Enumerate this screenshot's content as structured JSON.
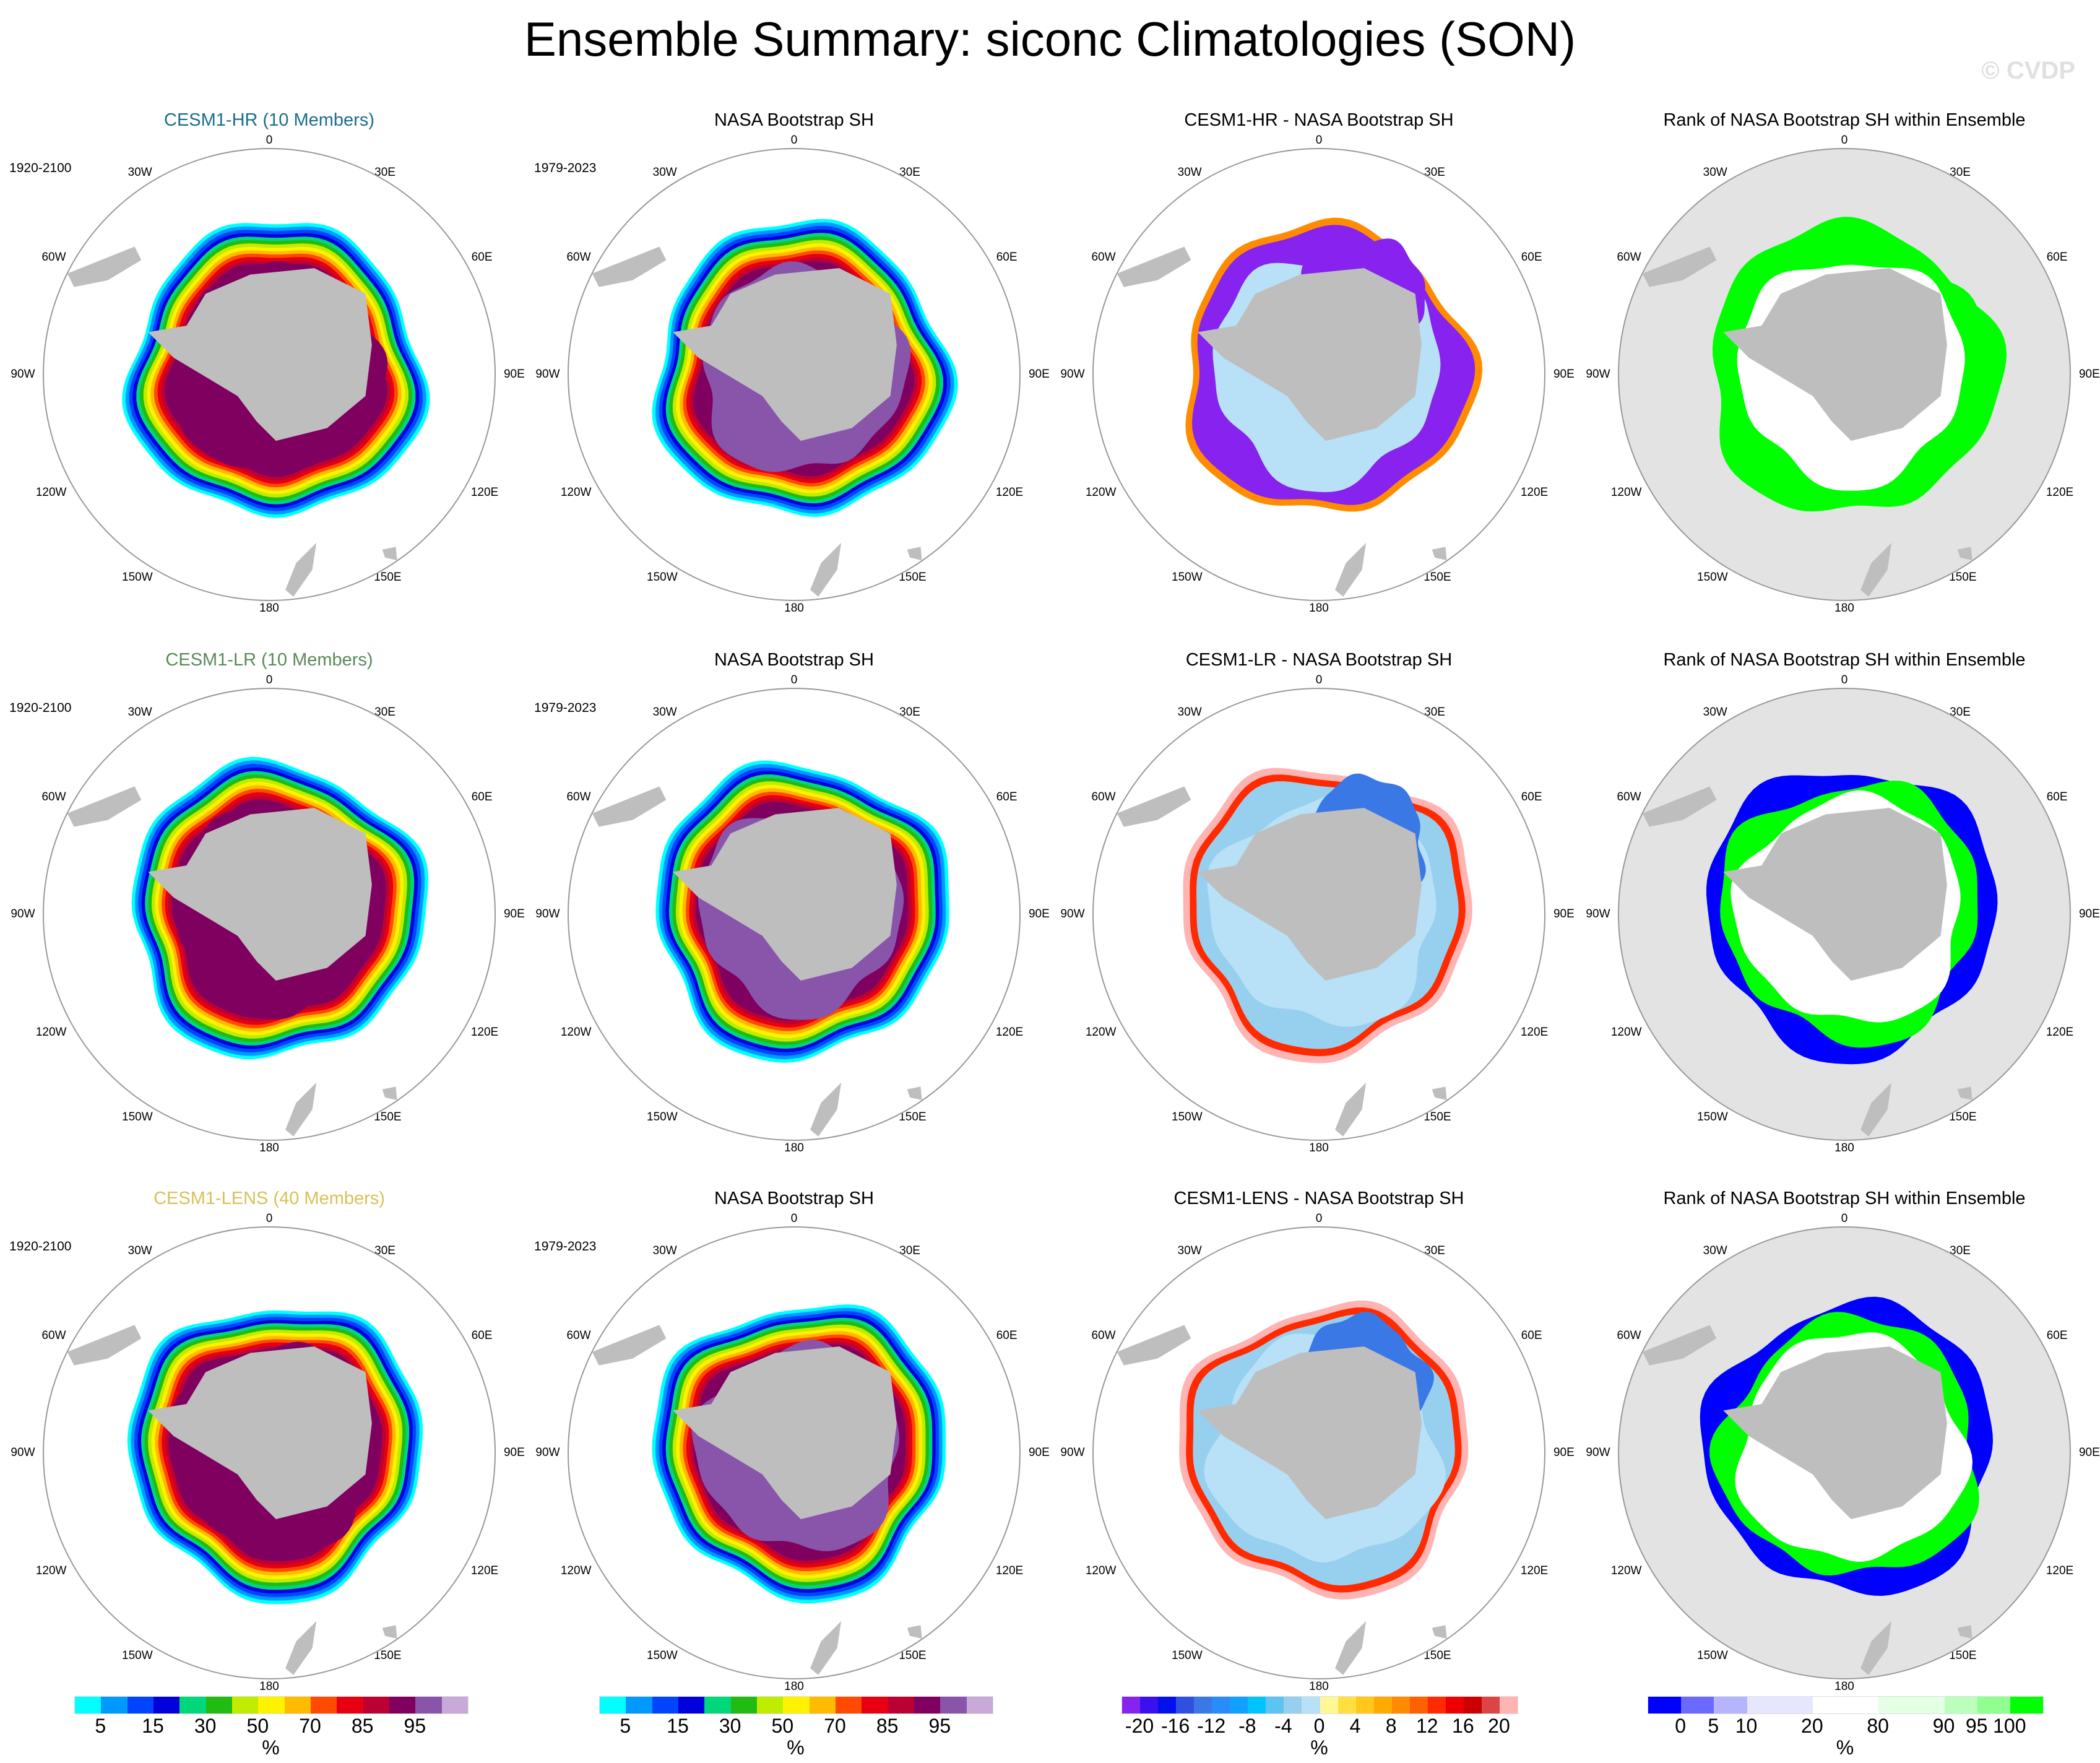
{
  "title": "Ensemble Summary: siconc Climatologies (SON)",
  "watermark": "© CVDP",
  "chart_data": {
    "type": "heatmap",
    "projection": "south-polar-stereographic",
    "longitude_labels": [
      "0",
      "30E",
      "60E",
      "90E",
      "120E",
      "150E",
      "180",
      "150W",
      "120W",
      "90W",
      "60W",
      "30W"
    ],
    "land_color": "#bebebe",
    "rows": [
      {
        "panels": [
          {
            "title": "CESM1-HR (10 Members)",
            "title_color": "#1a6e8e",
            "years": "1920-2100",
            "kind": "clim",
            "colorbar": 0
          },
          {
            "title": "NASA Bootstrap SH",
            "title_color": "#000000",
            "years": "1979-2023",
            "kind": "obs",
            "colorbar": 1
          },
          {
            "title": "CESM1-HR - NASA Bootstrap SH",
            "title_color": "#000000",
            "years": "",
            "kind": "diff",
            "colorbar": 2
          },
          {
            "title": "Rank of NASA Bootstrap SH within Ensemble",
            "title_color": "#000000",
            "years": "",
            "kind": "rank",
            "colorbar": 3
          }
        ]
      },
      {
        "panels": [
          {
            "title": "CESM1-LR (10 Members)",
            "title_color": "#5a8a5a",
            "years": "1920-2100",
            "kind": "clim",
            "colorbar": 0
          },
          {
            "title": "NASA Bootstrap SH",
            "title_color": "#000000",
            "years": "1979-2023",
            "kind": "obs",
            "colorbar": 1
          },
          {
            "title": "CESM1-LR - NASA Bootstrap SH",
            "title_color": "#000000",
            "years": "",
            "kind": "diff",
            "colorbar": 2
          },
          {
            "title": "Rank of NASA Bootstrap SH within Ensemble",
            "title_color": "#000000",
            "years": "",
            "kind": "rank",
            "colorbar": 3
          }
        ]
      },
      {
        "panels": [
          {
            "title": "CESM1-LENS (40 Members)",
            "title_color": "#d4c35a",
            "years": "1920-2100",
            "kind": "clim",
            "colorbar": 0
          },
          {
            "title": "NASA Bootstrap SH",
            "title_color": "#000000",
            "years": "1979-2023",
            "kind": "obs",
            "colorbar": 1
          },
          {
            "title": "CESM1-LENS - NASA Bootstrap SH",
            "title_color": "#000000",
            "years": "",
            "kind": "diff",
            "colorbar": 2
          },
          {
            "title": "Rank of NASA Bootstrap SH within Ensemble",
            "title_color": "#000000",
            "years": "",
            "kind": "rank",
            "colorbar": 3
          }
        ]
      }
    ],
    "colorbars": [
      {
        "unit": "%",
        "labels": [
          "5",
          "15",
          "30",
          "50",
          "70",
          "85",
          "95"
        ],
        "colors": [
          "#00ffff",
          "#0099ff",
          "#0044ff",
          "#0000dd",
          "#00d67a",
          "#22bb11",
          "#c0ec00",
          "#fff200",
          "#ffbb00",
          "#ff4a00",
          "#e60012",
          "#bb0033",
          "#800060",
          "#8855aa",
          "#c8aad8"
        ]
      },
      {
        "unit": "%",
        "labels": [
          "5",
          "15",
          "30",
          "50",
          "70",
          "85",
          "95"
        ],
        "colors": [
          "#00ffff",
          "#0099ff",
          "#0044ff",
          "#0000dd",
          "#00d67a",
          "#22bb11",
          "#c0ec00",
          "#fff200",
          "#ffbb00",
          "#ff4a00",
          "#e60012",
          "#bb0033",
          "#800060",
          "#8855aa",
          "#c8aad8"
        ]
      },
      {
        "unit": "%",
        "labels": [
          "-20",
          "-16",
          "-12",
          "-8",
          "-4",
          "0",
          "4",
          "8",
          "12",
          "16",
          "20"
        ],
        "colors": [
          "#8822ee",
          "#3a11ee",
          "#0011ee",
          "#3050e0",
          "#3a78e6",
          "#2a8cf8",
          "#11a0ff",
          "#00c4ff",
          "#5cc4f0",
          "#96d0ee",
          "#b8e0f6",
          "#fff896",
          "#ffe040",
          "#ffc81a",
          "#ffaa00",
          "#ff8c00",
          "#ff6000",
          "#ff2a00",
          "#ee0000",
          "#cc0000",
          "#dd4444",
          "#ffb4b4"
        ]
      },
      {
        "unit": "%",
        "labels": [
          "0",
          "5",
          "10",
          "20",
          "80",
          "90",
          "95",
          "100"
        ],
        "colors": [
          "#0000ff",
          "#6a6aff",
          "#b4b4ff",
          "#e6e6fe",
          "#e6e6fe",
          "#ffffff",
          "#ffffff",
          "#e4ffe4",
          "#e4ffe4",
          "#bcffbc",
          "#90ff90",
          "#00ff00"
        ]
      }
    ]
  }
}
